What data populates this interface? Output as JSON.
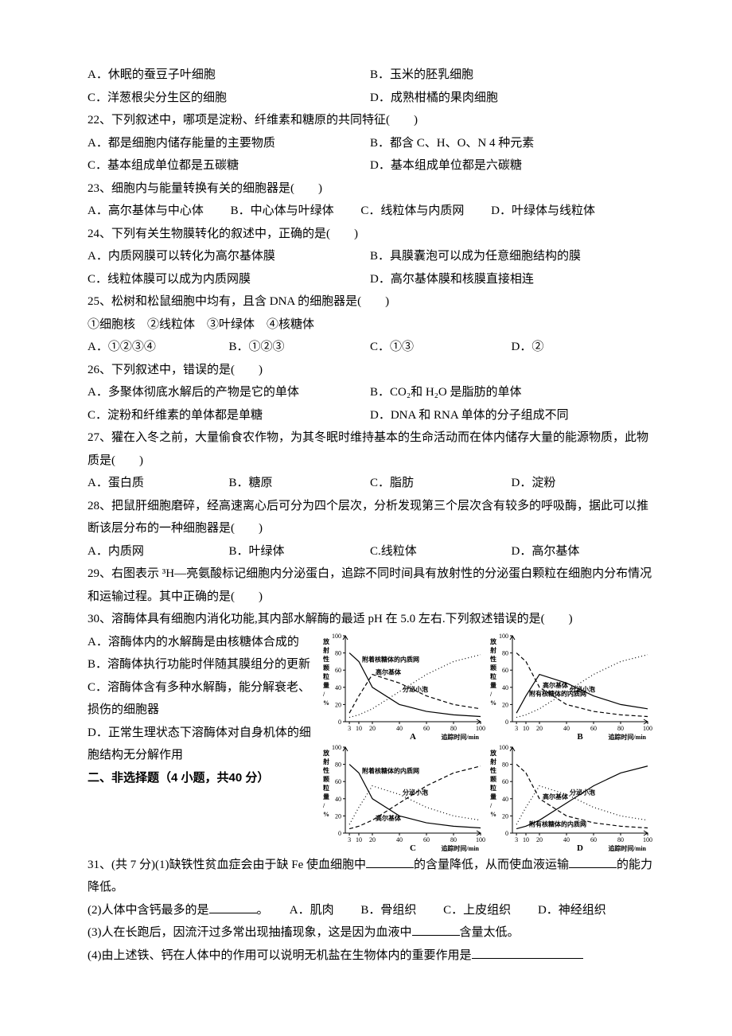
{
  "q21": {
    "A": "A．休眠的蚕豆子叶细胞",
    "B": "B．玉米的胚乳细胞",
    "C": "C．洋葱根尖分生区的细胞",
    "D": "D．成熟柑橘的果肉细胞"
  },
  "q22": {
    "stem": "22、下列叙述中，哪项是淀粉、纤维素和糖原的共同特征(　　)",
    "A": "A．都是细胞内储存能量的主要物质",
    "B": "B．都含 C、H、O、N 4 种元素",
    "C": "C．基本组成单位都是五碳糖",
    "D": "D．基本组成单位都是六碳糖"
  },
  "q23": {
    "stem": "23、细胞内与能量转换有关的细胞器是(　　)",
    "A": "A．高尔基体与中心体",
    "B": "B．中心体与叶绿体",
    "C": "C．线粒体与内质网",
    "D": "D．叶绿体与线粒体"
  },
  "q24": {
    "stem": "24、下列有关生物膜转化的叙述中，正确的是(　　)",
    "A": "A．内质网膜可以转化为高尔基体膜",
    "B": "B．具膜囊泡可以成为任意细胞结构的膜",
    "C": "C．线粒体膜可以成为内质网膜",
    "D": "D．高尔基体膜和核膜直接相连"
  },
  "q25": {
    "stem": "25、松树和松鼠细胞中均有，且含 DNA 的细胞器是(　　)",
    "list": "①细胞核　②线粒体　③叶绿体　④核糖体",
    "A": "A．①②③④",
    "B": "B．①②③",
    "C": "C．①③",
    "D": "D．②"
  },
  "q26": {
    "stem": "26、下列叙述中，错误的是(　　)",
    "A": "A．多聚体彻底水解后的产物是它的单体",
    "B": "B．CO₂和 H₂O 是脂肪的单体",
    "C": "C．淀粉和纤维素的单体都是单糖",
    "D": "D．DNA 和 RNA 单体的分子组成不同"
  },
  "q27": {
    "stem": "27、獾在入冬之前，大量偷食农作物，为其冬眠时维持基本的生命活动而在体内储存大量的能源物质，此物质是(　　)",
    "A": "A．蛋白质",
    "B": "B．糖原",
    "C": "C．脂肪",
    "D": "D．淀粉"
  },
  "q28": {
    "stem": "28、把鼠肝细胞磨碎，经高速离心后可分为四个层次，分析发现第三个层次含有较多的呼吸酶，据此可以推断该层分布的一种细胞器是(　　)",
    "A": "A．内质网",
    "B": "B．叶绿体",
    "C": "C.线粒体",
    "D": "D．高尔基体"
  },
  "q29": {
    "stem": "29、右图表示 ³H—亮氨酸标记细胞内分泌蛋白，追踪不同时间具有放射性的分泌蛋白颗粒在细胞内分布情况和运输过程。其中正确的是(　　)"
  },
  "q30": {
    "stem": "30、溶酶体具有细胞内消化功能,其内部水解酶的最适 pH 在 5.0 左右.下列叙述错误的是(　　)",
    "A": "A．溶酶体内的水解酶是由核糖体合成的",
    "B": "B．溶酶体执行功能时伴随其膜组分的更新",
    "C": "C．溶酶体含有多种水解酶，能分解衰老、损伤的细胞器",
    "D": "D．正常生理状态下溶酶体对自身机体的细胞结构无分解作用"
  },
  "section2": "二、非选择题（4 小题，共40 分）",
  "q31": {
    "p1a": "31、(共 7 分)(1)缺铁性贫血症会由于缺 Fe 使血细胞中",
    "p1b": "的含量降低，从而使血液运输",
    "p1c": "的能力降低。",
    "p2a": "(2)人体中含钙最多的是",
    "p2b": "。",
    "p2A": "A．肌肉",
    "p2B": "B．骨组织",
    "p2C": "C．上皮组织",
    "p2D": "D．神经组织",
    "p3a": "(3)人在长跑后，因流汗过多常出现抽搐现象，这是因为血液中",
    "p3b": "含量太低。",
    "p4a": "(4)由上述铁、钙在人体中的作用可以说明无机盐在生物体内的重要作用是"
  },
  "charts": {
    "ylabel": "放射性颗粒量/%",
    "xlabel": "追踪时间/min",
    "xticks": [
      "3",
      "10",
      "20",
      "40",
      "60",
      "80",
      "100"
    ],
    "yticks": [
      "0",
      "20",
      "40",
      "60",
      "80",
      "100"
    ],
    "series_labels": {
      "er": "附着核糖体的内质网",
      "er_short": "附有核糖体的内质网",
      "golgi": "高尔基体",
      "vesicle": "分泌小泡"
    },
    "colors": {
      "axis": "#000000",
      "line": "#000000",
      "bg": "#ffffff"
    },
    "panels": [
      "A",
      "B",
      "C",
      "D"
    ],
    "A": {
      "er": [
        [
          3,
          80
        ],
        [
          10,
          70
        ],
        [
          20,
          40
        ],
        [
          40,
          20
        ],
        [
          60,
          12
        ],
        [
          80,
          8
        ],
        [
          100,
          6
        ]
      ],
      "golgi": [
        [
          3,
          10
        ],
        [
          10,
          30
        ],
        [
          20,
          55
        ],
        [
          40,
          45
        ],
        [
          60,
          30
        ],
        [
          80,
          20
        ],
        [
          100,
          15
        ]
      ],
      "vesicle": [
        [
          3,
          5
        ],
        [
          10,
          8
        ],
        [
          20,
          15
        ],
        [
          40,
          35
        ],
        [
          60,
          55
        ],
        [
          80,
          70
        ],
        [
          100,
          78
        ]
      ]
    },
    "B": {
      "golgi": [
        [
          3,
          80
        ],
        [
          10,
          70
        ],
        [
          20,
          40
        ],
        [
          40,
          20
        ],
        [
          60,
          12
        ],
        [
          80,
          8
        ],
        [
          100,
          6
        ]
      ],
      "er": [
        [
          3,
          10
        ],
        [
          10,
          30
        ],
        [
          20,
          55
        ],
        [
          40,
          45
        ],
        [
          60,
          30
        ],
        [
          80,
          20
        ],
        [
          100,
          15
        ]
      ],
      "vesicle": [
        [
          3,
          5
        ],
        [
          10,
          8
        ],
        [
          20,
          15
        ],
        [
          40,
          35
        ],
        [
          60,
          55
        ],
        [
          80,
          70
        ],
        [
          100,
          78
        ]
      ]
    },
    "C": {
      "er": [
        [
          3,
          80
        ],
        [
          10,
          70
        ],
        [
          20,
          40
        ],
        [
          40,
          20
        ],
        [
          60,
          12
        ],
        [
          80,
          8
        ],
        [
          100,
          6
        ]
      ],
      "golgi": [
        [
          3,
          5
        ],
        [
          10,
          8
        ],
        [
          20,
          15
        ],
        [
          40,
          35
        ],
        [
          60,
          55
        ],
        [
          80,
          70
        ],
        [
          100,
          78
        ]
      ],
      "vesicle": [
        [
          3,
          10
        ],
        [
          10,
          30
        ],
        [
          20,
          55
        ],
        [
          40,
          45
        ],
        [
          60,
          30
        ],
        [
          80,
          20
        ],
        [
          100,
          15
        ]
      ]
    },
    "D": {
      "golgi": [
        [
          3,
          80
        ],
        [
          10,
          70
        ],
        [
          20,
          40
        ],
        [
          40,
          20
        ],
        [
          60,
          12
        ],
        [
          80,
          8
        ],
        [
          100,
          6
        ]
      ],
      "er": [
        [
          3,
          5
        ],
        [
          10,
          8
        ],
        [
          20,
          15
        ],
        [
          40,
          35
        ],
        [
          60,
          55
        ],
        [
          80,
          70
        ],
        [
          100,
          78
        ]
      ],
      "vesicle": [
        [
          3,
          10
        ],
        [
          10,
          30
        ],
        [
          20,
          55
        ],
        [
          40,
          45
        ],
        [
          60,
          30
        ],
        [
          80,
          20
        ],
        [
          100,
          15
        ]
      ]
    },
    "line_styles": {
      "er": "solid",
      "golgi": "dashed",
      "vesicle": "dotted"
    },
    "fontsize_axis": 8,
    "fontsize_label": 8,
    "fontsize_panel": 11
  }
}
